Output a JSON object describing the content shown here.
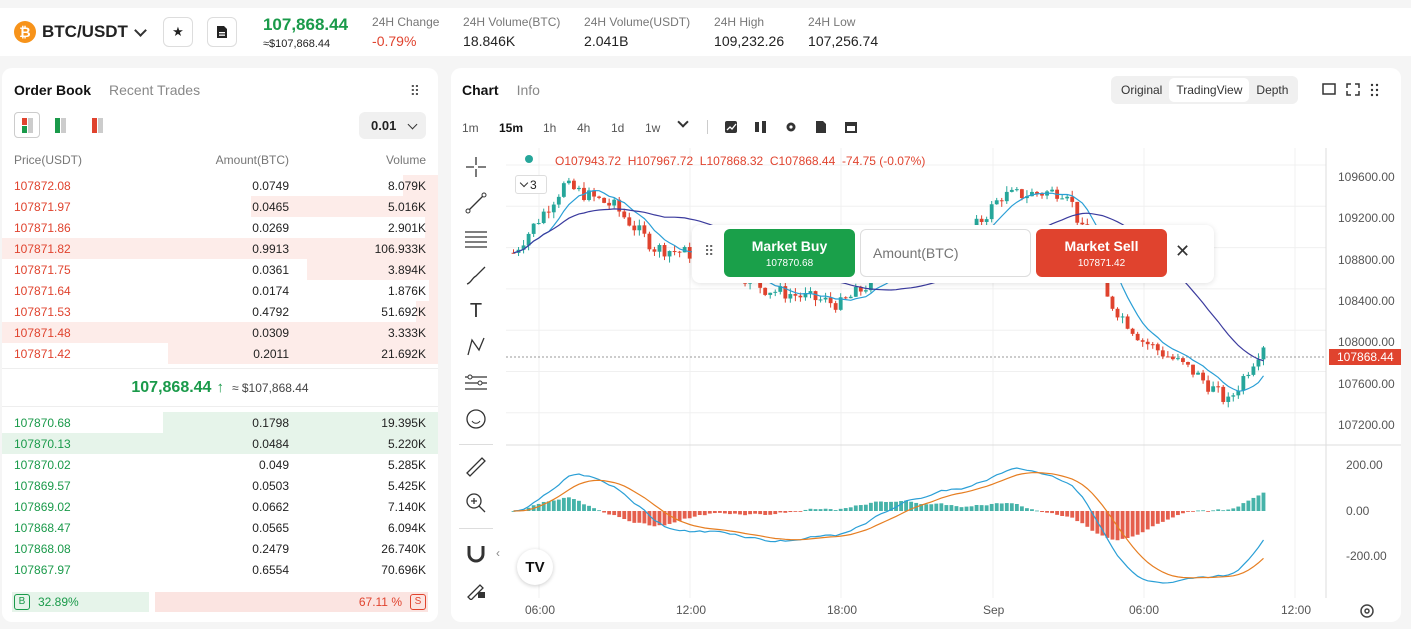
{
  "header": {
    "coin_glyph": "₿",
    "pair": "BTC/USDT",
    "last_price": "107,868.44",
    "last_price_fiat": "≈$107,868.44",
    "stats": [
      {
        "label": "24H Change",
        "value": "-0.79%",
        "color": "#e0432e"
      },
      {
        "label": "24H Volume(BTC)",
        "value": "18.846K",
        "color": "#222222"
      },
      {
        "label": "24H Volume(USDT)",
        "value": "2.041B",
        "color": "#222222"
      },
      {
        "label": "24H High",
        "value": "109,232.26",
        "color": "#222222"
      },
      {
        "label": "24H Low",
        "value": "107,256.74",
        "color": "#222222"
      }
    ],
    "favorite_icon": "star-icon",
    "doc_icon": "document-icon"
  },
  "orderbook": {
    "tabs": [
      "Order Book",
      "Recent Trades"
    ],
    "precision": "0.01",
    "columns": [
      "Price(USDT)",
      "Amount(BTC)",
      "Volume"
    ],
    "asks": [
      {
        "price": "107872.08",
        "amount": "0.0749",
        "volume": "8.079K",
        "depth": 0.08
      },
      {
        "price": "107871.97",
        "amount": "0.0465",
        "volume": "5.016K",
        "depth": 0.43
      },
      {
        "price": "107871.86",
        "amount": "0.0269",
        "volume": "2.901K",
        "depth": 0.03
      },
      {
        "price": "107871.82",
        "amount": "0.9913",
        "volume": "106.933K",
        "depth": 1.0
      },
      {
        "price": "107871.75",
        "amount": "0.0361",
        "volume": "3.894K",
        "depth": 0.3
      },
      {
        "price": "107871.64",
        "amount": "0.0174",
        "volume": "1.876K",
        "depth": 0.02
      },
      {
        "price": "107871.53",
        "amount": "0.4792",
        "volume": "51.692K",
        "depth": 0.05
      },
      {
        "price": "107871.48",
        "amount": "0.0309",
        "volume": "3.333K",
        "depth": 1.0
      },
      {
        "price": "107871.42",
        "amount": "0.2011",
        "volume": "21.692K",
        "depth": 0.62
      }
    ],
    "mid_price": "107,868.44",
    "mid_arrow": "↑",
    "mid_fiat": "≈ $107,868.44",
    "bids": [
      {
        "price": "107870.68",
        "amount": "0.1798",
        "volume": "19.395K",
        "depth": 0.63
      },
      {
        "price": "107870.13",
        "amount": "0.0484",
        "volume": "5.220K",
        "depth": 1.0
      },
      {
        "price": "107870.02",
        "amount": "0.049",
        "volume": "5.285K",
        "depth": 0.0
      },
      {
        "price": "107869.57",
        "amount": "0.0503",
        "volume": "5.425K",
        "depth": 0.0
      },
      {
        "price": "107869.02",
        "amount": "0.0662",
        "volume": "7.140K",
        "depth": 0.0
      },
      {
        "price": "107868.47",
        "amount": "0.0565",
        "volume": "6.094K",
        "depth": 0.0
      },
      {
        "price": "107868.08",
        "amount": "0.2479",
        "volume": "26.740K",
        "depth": 0.0
      },
      {
        "price": "107867.97",
        "amount": "0.6554",
        "volume": "70.696K",
        "depth": 0.0
      }
    ],
    "buy_label": "B",
    "buy_pct": "32.89%",
    "sell_pct": "67.11 %",
    "sell_label": "S",
    "buy_ratio": 0.3289
  },
  "chart": {
    "tabs": [
      "Chart",
      "Info"
    ],
    "views": [
      "Original",
      "TradingView",
      "Depth"
    ],
    "active_view": "TradingView",
    "timeframes": [
      "1m",
      "15m",
      "1h",
      "4h",
      "1d",
      "1w"
    ],
    "active_timeframe": "15m",
    "ohlc": {
      "o": "O107943.72",
      "h": "H107967.72",
      "l": "L107868.32",
      "c": "C107868.44",
      "chg": "-74.75 (-0.07%)"
    },
    "indicator_count": "3",
    "price_ticks": [
      "109600.00",
      "109200.00",
      "108800.00",
      "108400.00",
      "108000.00",
      "107600.00",
      "107200.00"
    ],
    "current_price_tag": "107868.44",
    "macd_ticks": [
      "200.00",
      "0.00",
      "-200.00"
    ],
    "time_ticks": [
      "06:00",
      "12:00",
      "18:00",
      "Sep",
      "06:00",
      "12:00"
    ],
    "market_buy": {
      "label": "Market Buy",
      "price": "107870.68"
    },
    "amount_placeholder": "Amount(BTC)",
    "market_sell": {
      "label": "Market Sell",
      "price": "107871.42"
    },
    "logo_text": "TV"
  },
  "chart_data": {
    "type": "candlestick",
    "interval": "15m",
    "ylim": [
      107100,
      109800
    ],
    "colors": {
      "up": "#26a69a",
      "down": "#e0432e"
    },
    "current_price": 107868.44
  }
}
